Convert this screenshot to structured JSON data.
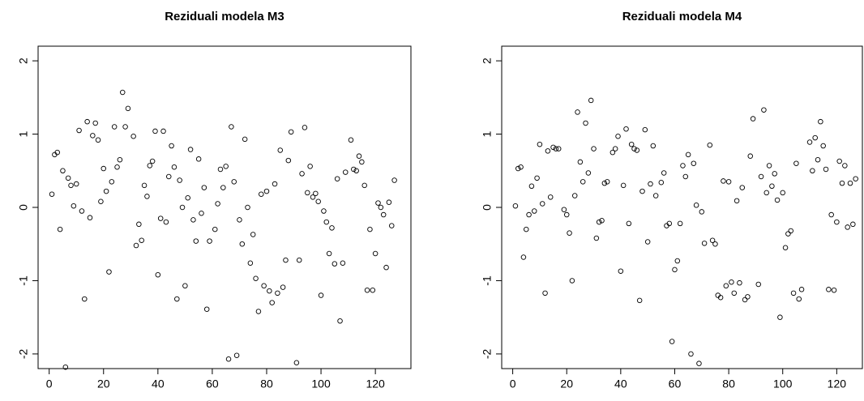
{
  "chart_data": [
    {
      "type": "scatter",
      "title": "Reziduali modela M3",
      "color": "#000000",
      "xlim": [
        -4.08,
        133.08
      ],
      "ylim": [
        -2.2,
        2.2
      ],
      "xticks": [
        0,
        20,
        40,
        60,
        80,
        100,
        120
      ],
      "yticks": [
        -2,
        -1,
        0,
        1,
        2
      ],
      "series": [
        {
          "x": [
            1,
            2,
            3,
            4,
            5,
            6,
            7,
            8,
            9,
            10,
            11,
            12,
            13,
            14,
            15,
            16,
            17,
            18,
            19,
            20,
            21,
            22,
            23,
            24,
            25,
            26,
            27,
            28,
            29,
            31,
            32,
            33,
            34,
            35,
            36,
            37,
            38,
            39,
            40,
            41,
            42,
            43,
            44,
            45,
            46,
            47,
            48,
            49,
            50,
            51,
            52,
            53,
            54,
            55,
            56,
            57,
            58,
            59,
            61,
            62,
            63,
            64,
            65,
            66,
            67,
            68,
            69,
            70,
            71,
            72,
            73,
            74,
            75,
            76,
            77,
            78,
            79,
            80,
            81,
            82,
            83,
            84,
            85,
            86,
            87,
            88,
            89,
            91,
            92,
            93,
            94,
            95,
            96,
            97,
            98,
            99,
            100,
            101,
            102,
            103,
            104,
            105,
            106,
            107,
            108,
            109,
            111,
            112,
            113,
            114,
            115,
            116,
            117,
            118,
            119,
            120,
            121,
            122,
            123,
            124,
            125,
            126,
            127
          ],
          "values": [
            0.18,
            0.72,
            0.75,
            -0.3,
            0.5,
            -2.18,
            0.4,
            0.3,
            0.02,
            0.32,
            1.05,
            -0.05,
            -1.25,
            1.17,
            -0.14,
            0.98,
            1.15,
            0.92,
            0.08,
            0.53,
            0.22,
            -0.88,
            0.35,
            1.1,
            0.55,
            0.65,
            1.57,
            1.1,
            1.35,
            0.97,
            -0.52,
            -0.23,
            -0.45,
            0.3,
            0.15,
            0.57,
            0.63,
            1.04,
            -0.92,
            -0.15,
            1.04,
            -0.2,
            0.42,
            0.84,
            0.55,
            -1.25,
            0.37,
            0.0,
            -1.07,
            0.13,
            0.79,
            -0.17,
            -0.46,
            0.66,
            -0.08,
            0.27,
            -1.39,
            -0.46,
            -0.3,
            0.05,
            0.52,
            0.27,
            0.56,
            -2.07,
            1.1,
            0.35,
            -2.02,
            -0.17,
            -0.5,
            0.93,
            0.0,
            -0.76,
            -0.37,
            -0.97,
            -1.42,
            0.18,
            -1.07,
            0.22,
            -1.14,
            -1.3,
            0.32,
            -1.17,
            0.78,
            -1.09,
            -0.72,
            0.64,
            1.03,
            -2.12,
            -0.72,
            0.46,
            1.09,
            0.2,
            0.56,
            0.14,
            0.19,
            0.08,
            -1.2,
            -0.05,
            -0.2,
            -0.63,
            -0.28,
            -0.77,
            0.39,
            -1.55,
            -0.76,
            0.48,
            0.92,
            0.52,
            0.5,
            0.7,
            0.62,
            0.3,
            -1.13,
            -0.3,
            -1.13,
            -0.63,
            0.06,
            0.0,
            -0.1,
            -0.82,
            0.07,
            -0.25,
            0.37
          ]
        }
      ]
    },
    {
      "type": "scatter",
      "title": "Reziduali modela M4",
      "color": "#000000",
      "xlim": [
        -4.08,
        129.5
      ],
      "ylim": [
        -2.2,
        2.2
      ],
      "xticks": [
        0,
        20,
        40,
        60,
        80,
        100,
        120
      ],
      "yticks": [
        -2,
        -1,
        0,
        1,
        2
      ],
      "series": [
        {
          "x": [
            1,
            2,
            3,
            4,
            5,
            6,
            7,
            8,
            9,
            10,
            11,
            12,
            13,
            14,
            15,
            16,
            17,
            19,
            20,
            21,
            22,
            23,
            24,
            25,
            26,
            27,
            28,
            29,
            30,
            31,
            32,
            33,
            34,
            35,
            37,
            38,
            39,
            40,
            41,
            42,
            43,
            44,
            45,
            46,
            47,
            48,
            49,
            50,
            51,
            52,
            53,
            55,
            56,
            57,
            58,
            59,
            60,
            61,
            62,
            63,
            64,
            65,
            66,
            67,
            68,
            69,
            70,
            71,
            73,
            74,
            75,
            76,
            77,
            78,
            79,
            80,
            81,
            82,
            83,
            84,
            85,
            86,
            87,
            88,
            89,
            91,
            92,
            93,
            94,
            95,
            96,
            97,
            98,
            99,
            100,
            101,
            102,
            103,
            104,
            105,
            106,
            107,
            110,
            111,
            112,
            113,
            114,
            115,
            116,
            117,
            118,
            119,
            120,
            121,
            122,
            123,
            124,
            125,
            126,
            127
          ],
          "values": [
            0.02,
            0.53,
            0.55,
            -0.68,
            -0.3,
            -0.1,
            0.29,
            -0.05,
            0.4,
            0.86,
            0.05,
            -1.17,
            0.77,
            0.14,
            0.82,
            0.8,
            0.8,
            -0.03,
            -0.1,
            -0.35,
            -1.0,
            0.16,
            1.3,
            0.62,
            0.35,
            1.15,
            0.47,
            1.46,
            0.8,
            -0.42,
            -0.2,
            -0.18,
            0.33,
            0.35,
            0.75,
            0.8,
            0.97,
            -0.87,
            0.3,
            1.07,
            -0.22,
            0.86,
            0.8,
            0.78,
            -1.27,
            0.22,
            1.06,
            -0.47,
            0.32,
            0.84,
            0.16,
            0.34,
            0.47,
            -0.25,
            -0.22,
            -1.83,
            -0.85,
            -0.73,
            -0.22,
            0.57,
            0.42,
            0.72,
            -2.0,
            0.6,
            0.03,
            -2.13,
            -0.06,
            -0.49,
            0.85,
            -0.45,
            -0.5,
            -1.2,
            -1.23,
            0.36,
            -1.07,
            0.35,
            -1.02,
            -1.17,
            0.09,
            -1.03,
            0.27,
            -1.26,
            -1.22,
            0.7,
            1.21,
            -1.05,
            0.42,
            1.33,
            0.2,
            0.57,
            0.29,
            0.46,
            0.1,
            -1.5,
            0.2,
            -0.55,
            -0.36,
            -0.32,
            -1.17,
            0.6,
            -1.25,
            -1.12,
            0.89,
            0.5,
            0.95,
            0.65,
            1.17,
            0.84,
            0.52,
            -1.12,
            -0.1,
            -1.13,
            -0.2,
            0.63,
            0.33,
            0.57,
            -0.27,
            0.33,
            -0.23,
            0.39
          ]
        }
      ]
    }
  ]
}
